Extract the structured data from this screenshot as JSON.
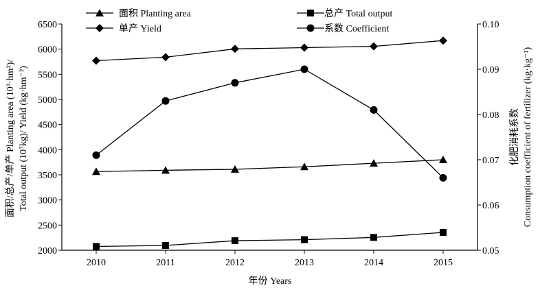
{
  "chart_data": {
    "type": "line",
    "x": [
      "2010",
      "2011",
      "2012",
      "2013",
      "2014",
      "2015"
    ],
    "xlabel": "年份 Years",
    "ylabel_left": [
      "面积/总产/单产 Planting area (10³·hm²)/",
      "Total output (10⁷kg)/ Yield (kg·hm⁻²)"
    ],
    "ylabel_right": [
      "化肥消耗系数",
      "Consumption coefficient of fertilizer (kg·kg⁻¹)"
    ],
    "ylim_left": [
      2000,
      6500
    ],
    "yticks_left": [
      "2000",
      "2500",
      "3000",
      "3500",
      "4000",
      "4500",
      "5000",
      "5500",
      "6000",
      "6500"
    ],
    "ylim_right": [
      0.05,
      0.1
    ],
    "yticks_right": [
      "0.05",
      "0.06",
      "0.07",
      "0.08",
      "0.09",
      "0.10"
    ],
    "series": [
      {
        "name": "面积 Planting area",
        "marker": "triangle",
        "axis": "left",
        "values": [
          3565,
          3590,
          3610,
          3660,
          3730,
          3800
        ]
      },
      {
        "name": "总产 Total output",
        "marker": "square",
        "axis": "left",
        "values": [
          2075,
          2095,
          2190,
          2210,
          2255,
          2355
        ]
      },
      {
        "name": "单产 Yield",
        "marker": "diamond",
        "axis": "left",
        "values": [
          5770,
          5840,
          6005,
          6030,
          6055,
          6170
        ]
      },
      {
        "name": "系数 Coefficient",
        "marker": "circle",
        "axis": "right",
        "values": [
          0.071,
          0.083,
          0.087,
          0.09,
          0.081,
          0.066
        ]
      }
    ],
    "legend_placement": "top, two columns",
    "grid": false
  }
}
